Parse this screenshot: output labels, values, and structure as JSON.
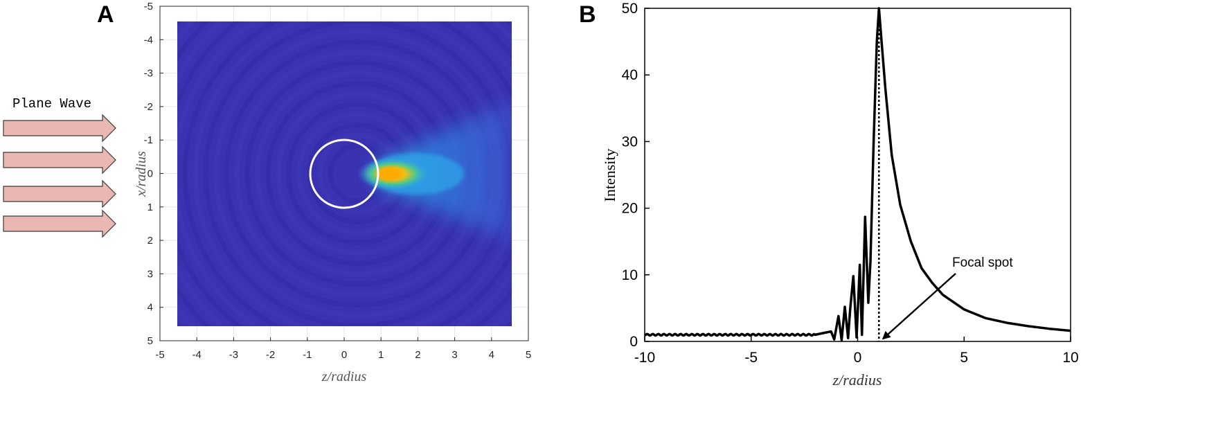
{
  "panels": {
    "a_label": "A",
    "b_label": "B"
  },
  "annotations": {
    "plane_wave": "Plane Wave",
    "focal_spot": "Focal spot"
  },
  "colors": {
    "field_background": "#3a32b0",
    "hot_spot": "#f5b800",
    "beam": "#2a9df0",
    "circle": "#ffffff",
    "arrow_fill": "#e9b8b3",
    "arrow_stroke": "#3a3a3a",
    "curve": "#000000"
  },
  "chart_data": [
    {
      "type": "heatmap",
      "xlabel": "z/radius",
      "ylabel": "x/radius",
      "xlim": [
        -5,
        5
      ],
      "ylim": [
        -5,
        5
      ],
      "y_reversed": true,
      "x_ticks": [
        -5,
        -4,
        -3,
        -2,
        -1,
        0,
        1,
        2,
        3,
        4,
        5
      ],
      "y_ticks": [
        -5,
        -4,
        -3,
        -2,
        -1,
        0,
        1,
        2,
        3,
        4,
        5
      ],
      "field_extent": {
        "z": [
          -4.5,
          4.5
        ],
        "x": [
          -4.5,
          4.5
        ]
      },
      "sphere": {
        "center": [
          0,
          0
        ],
        "radius": 1
      },
      "focal_spot_center": [
        1.2,
        0
      ],
      "grid": true
    },
    {
      "type": "line",
      "xlabel": "z/radius",
      "ylabel": "Intensity",
      "xlim": [
        -10,
        10
      ],
      "ylim": [
        0,
        50
      ],
      "x_ticks": [
        -10,
        -5,
        0,
        5,
        10
      ],
      "y_ticks": [
        0,
        10,
        20,
        30,
        40,
        50
      ],
      "grid": false,
      "series": [
        {
          "x": [
            -10,
            -2.0,
            -1.25,
            -1.1,
            -0.9,
            -0.75,
            -0.6,
            -0.45,
            -0.35,
            -0.2,
            -0.05,
            0.1,
            0.2,
            0.35,
            0.5,
            0.6,
            0.75,
            0.9,
            1.0,
            1.1,
            1.3,
            1.6,
            2.0,
            2.5,
            3.0,
            3.5,
            4.0,
            5.0,
            6.0,
            7.0,
            8.0,
            9.0,
            10.0
          ],
          "y": [
            1.0,
            1.0,
            1.5,
            0.3,
            3.8,
            0.2,
            5.2,
            0.5,
            4.8,
            9.8,
            0.6,
            11.5,
            1.0,
            18.7,
            5.8,
            12.0,
            30.0,
            45.0,
            50.0,
            46.0,
            38.0,
            28.0,
            20.5,
            15.0,
            11.0,
            8.8,
            7.0,
            4.8,
            3.5,
            2.8,
            2.3,
            1.9,
            1.6
          ]
        }
      ],
      "focal_line_x": 1.0,
      "annotation": {
        "text": "Focal spot",
        "points_to": [
          1.0,
          0
        ]
      }
    }
  ]
}
